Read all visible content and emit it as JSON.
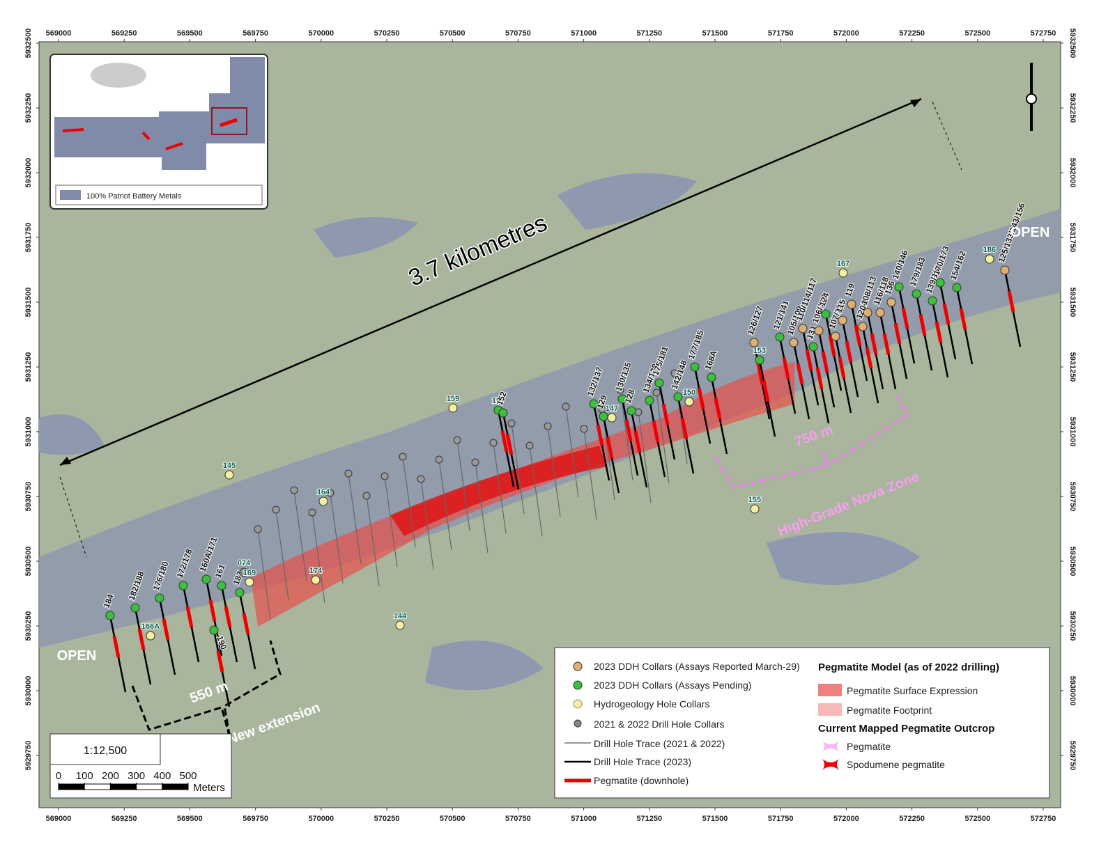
{
  "map": {
    "eastings": [
      569000,
      569250,
      569500,
      569750,
      570000,
      570250,
      570500,
      570750,
      571000,
      571250,
      571500,
      571750,
      572000,
      572250,
      572500,
      572750
    ],
    "northings": [
      5932500,
      5932250,
      5932000,
      5931750,
      5931500,
      5931250,
      5931000,
      5930750,
      5930500,
      5930250,
      5930000,
      5929750
    ],
    "annotations": {
      "distance": "3.7 kilometres",
      "open_left": "OPEN",
      "open_right": "OPEN",
      "nova_length": "750 m",
      "nova_zone": "High-Grade Nova Zone",
      "ext_length": "550 m",
      "new_extension": "New extension"
    },
    "inset": {
      "legend": "100% Patriot Battery Metals"
    },
    "holes": [
      "184",
      "182/188",
      "176/180",
      "172/178",
      "160A/171",
      "161",
      "187",
      "190",
      "074",
      "169",
      "166A",
      "174",
      "144",
      "145",
      "164",
      "159",
      "157",
      "152",
      "155",
      "132/137",
      "129",
      "147",
      "130/135",
      "128",
      "134/138",
      "175/181",
      "142/148",
      "177/185",
      "168A",
      "150",
      "126/127",
      "153",
      "121/141",
      "105/109",
      "110/114/117",
      "131",
      "106/112",
      "124",
      "107/111",
      "115",
      "119",
      "120/122",
      "108/113",
      "116/118",
      "136",
      "140/146",
      "179/183",
      "139/151",
      "170/173",
      "154/162",
      "186",
      "167",
      "125/133/143/156"
    ],
    "scale": {
      "ratio": "1:12,500",
      "ticks": [
        0,
        100,
        200,
        300,
        400,
        500
      ],
      "unit": "Meters"
    },
    "legend": {
      "collars_reported": "2023 DDH Collars (Assays Reported March-29)",
      "collars_pending": "2023 DDH Collars (Assays Pending)",
      "hydro": "Hydrogeology Hole Collars",
      "old_collars": "2021 & 2022 Drill Hole Collars",
      "old_trace": "Drill Hole Trace (2021 & 2022)",
      "new_trace": "Drill Hole Trace (2023)",
      "peg_downhole": "Pegmatite (downhole)",
      "model_title": "Pegmatite Model (as of 2022 drilling)",
      "surface": "Pegmatite Surface Expression",
      "footprint": "Pegmatite Footprint",
      "outcrop_title": "Current Mapped Pegmatite Outcrop",
      "pegmatite": "Pegmatite",
      "spodumene": "Spodumene pegmatite"
    }
  }
}
